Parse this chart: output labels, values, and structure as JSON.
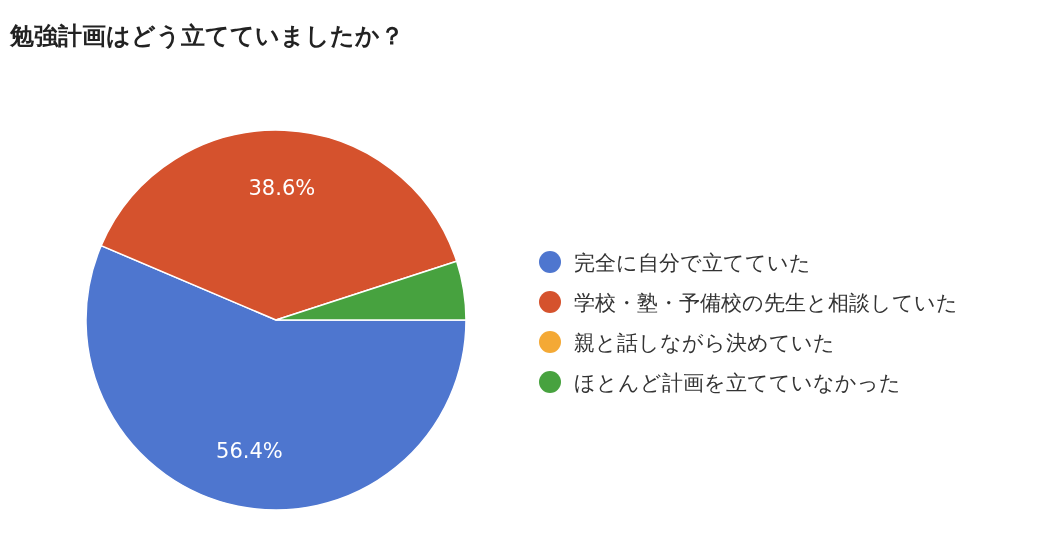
{
  "chart_data": {
    "type": "pie",
    "title": "勉強計画はどう立てていましたか？",
    "categories": [
      "完全に自分で立てていた",
      "学校・塾・予備校の先生と相談していた",
      "親と話しながら決めていた",
      "ほとんど計画を立てていなかった"
    ],
    "values": [
      56.4,
      38.6,
      0,
      5.0
    ],
    "colors": [
      "#4e76cf",
      "#d5522d",
      "#f4a935",
      "#47a23f"
    ],
    "value_labels": [
      "56.4%",
      "38.6%",
      null,
      null
    ],
    "legend": "right"
  }
}
